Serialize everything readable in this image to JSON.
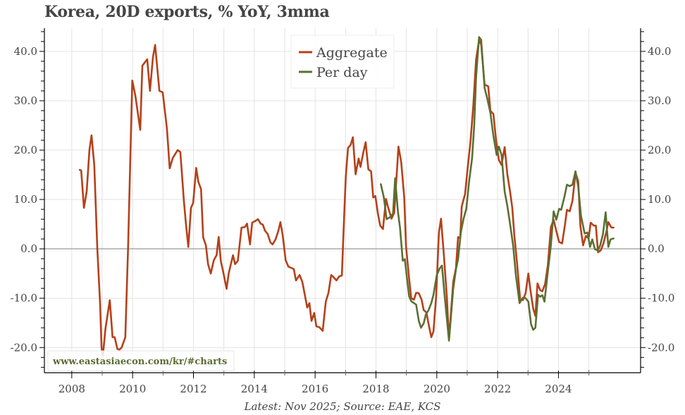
{
  "chart_data": {
    "type": "line",
    "title": "Korea, 20D exports, % YoY, 3mma",
    "caption": "Latest: Nov 2025; Source: EAE, KCS",
    "watermark": "www.eastasiaecon.com/kr/#charts",
    "xlabel": "",
    "ylabel": "",
    "xlim": [
      2007.1,
      2026.7
    ],
    "ylim": [
      -25.1,
      44.7
    ],
    "x_ticks": [
      2008,
      2010,
      2012,
      2014,
      2016,
      2018,
      2020,
      2022,
      2024
    ],
    "x_tick_labels": [
      "2008",
      "2010",
      "2012",
      "2014",
      "2016",
      "2018",
      "2020",
      "2022",
      "2024"
    ],
    "x_minor_ticks": [
      2009,
      2011,
      2013,
      2015,
      2017,
      2019,
      2021,
      2023,
      2025
    ],
    "y_ticks": [
      -20,
      -10,
      0,
      10,
      20,
      30,
      40
    ],
    "y_tick_labels": [
      "-20.0",
      "-10.0",
      "0.0",
      "10.0",
      "20.0",
      "30.0",
      "40.0"
    ],
    "y_minor_step": 2,
    "y_axis_both_sides": true,
    "grid": true,
    "zero_line": true,
    "legend": {
      "placement": "top-center",
      "entries": [
        "Aggregate",
        "Per day"
      ]
    },
    "colors": {
      "Aggregate": "#b5401a",
      "Per day": "#5a7032",
      "grid": "#e3e3e3",
      "zero": "#aaaaaa",
      "axis": "#000000"
    },
    "series": [
      {
        "name": "Aggregate",
        "points": [
          [
            2008.26,
            16.0
          ],
          [
            2008.31,
            15.9
          ],
          [
            2008.4,
            8.3
          ],
          [
            2008.49,
            11.6
          ],
          [
            2008.58,
            20.0
          ],
          [
            2008.65,
            23.0
          ],
          [
            2008.74,
            16.9
          ],
          [
            2008.84,
            0.0
          ],
          [
            2008.93,
            -11.0
          ],
          [
            2008.98,
            -20.0
          ],
          [
            2009.02,
            -21.7
          ],
          [
            2009.11,
            -16.0
          ],
          [
            2009.25,
            -10.4
          ],
          [
            2009.34,
            -17.9
          ],
          [
            2009.41,
            -17.9
          ],
          [
            2009.5,
            -20.3
          ],
          [
            2009.57,
            -20.4
          ],
          [
            2009.64,
            -20.0
          ],
          [
            2009.76,
            -17.9
          ],
          [
            2009.85,
            0.0
          ],
          [
            2009.99,
            34.1
          ],
          [
            2010.09,
            31.0
          ],
          [
            2010.25,
            24.1
          ],
          [
            2010.32,
            37.1
          ],
          [
            2010.48,
            38.4
          ],
          [
            2010.57,
            32.0
          ],
          [
            2010.67,
            38.9
          ],
          [
            2010.74,
            41.3
          ],
          [
            2010.88,
            32.0
          ],
          [
            2010.99,
            31.7
          ],
          [
            2011.13,
            24.3
          ],
          [
            2011.22,
            16.3
          ],
          [
            2011.32,
            18.4
          ],
          [
            2011.39,
            19.1
          ],
          [
            2011.48,
            20.0
          ],
          [
            2011.57,
            19.6
          ],
          [
            2011.69,
            9.4
          ],
          [
            2011.76,
            4.7
          ],
          [
            2011.83,
            0.4
          ],
          [
            2011.92,
            8.3
          ],
          [
            2011.99,
            9.3
          ],
          [
            2012.09,
            16.4
          ],
          [
            2012.16,
            13.6
          ],
          [
            2012.25,
            12.1
          ],
          [
            2012.32,
            2.3
          ],
          [
            2012.41,
            0.7
          ],
          [
            2012.48,
            -3.1
          ],
          [
            2012.57,
            -5.0
          ],
          [
            2012.67,
            -2.3
          ],
          [
            2012.76,
            -1.3
          ],
          [
            2012.83,
            2.4
          ],
          [
            2012.9,
            -2.4
          ],
          [
            2012.99,
            -5.0
          ],
          [
            2013.09,
            -8.1
          ],
          [
            2013.16,
            -4.9
          ],
          [
            2013.3,
            -1.3
          ],
          [
            2013.37,
            -3.1
          ],
          [
            2013.46,
            -2.4
          ],
          [
            2013.58,
            4.3
          ],
          [
            2013.69,
            4.4
          ],
          [
            2013.76,
            5.1
          ],
          [
            2013.86,
            0.9
          ],
          [
            2013.93,
            5.3
          ],
          [
            2014.05,
            5.7
          ],
          [
            2014.12,
            6.0
          ],
          [
            2014.21,
            5.1
          ],
          [
            2014.28,
            4.9
          ],
          [
            2014.35,
            3.7
          ],
          [
            2014.44,
            3.0
          ],
          [
            2014.53,
            1.3
          ],
          [
            2014.6,
            0.9
          ],
          [
            2014.7,
            1.9
          ],
          [
            2014.79,
            3.6
          ],
          [
            2014.86,
            5.4
          ],
          [
            2014.93,
            2.9
          ],
          [
            2015.03,
            -2.3
          ],
          [
            2015.12,
            -3.6
          ],
          [
            2015.23,
            -3.9
          ],
          [
            2015.3,
            -4.1
          ],
          [
            2015.37,
            -6.4
          ],
          [
            2015.49,
            -5.3
          ],
          [
            2015.58,
            -6.7
          ],
          [
            2015.67,
            -9.6
          ],
          [
            2015.74,
            -11.9
          ],
          [
            2015.81,
            -11.0
          ],
          [
            2015.88,
            -14.6
          ],
          [
            2015.97,
            -13.0
          ],
          [
            2016.04,
            -15.7
          ],
          [
            2016.14,
            -15.9
          ],
          [
            2016.25,
            -16.6
          ],
          [
            2016.35,
            -10.7
          ],
          [
            2016.44,
            -8.9
          ],
          [
            2016.53,
            -5.3
          ],
          [
            2016.6,
            -5.7
          ],
          [
            2016.7,
            -6.4
          ],
          [
            2016.79,
            -5.6
          ],
          [
            2016.88,
            -5.4
          ],
          [
            2016.95,
            6.1
          ],
          [
            2017.01,
            14.7
          ],
          [
            2017.08,
            20.4
          ],
          [
            2017.17,
            21.1
          ],
          [
            2017.24,
            22.6
          ],
          [
            2017.33,
            15.1
          ],
          [
            2017.43,
            18.3
          ],
          [
            2017.49,
            16.6
          ],
          [
            2017.59,
            19.7
          ],
          [
            2017.66,
            21.6
          ],
          [
            2017.75,
            16.1
          ],
          [
            2017.84,
            15.7
          ],
          [
            2017.91,
            10.4
          ],
          [
            2017.98,
            10.7
          ],
          [
            2018.07,
            6.9
          ],
          [
            2018.14,
            4.7
          ],
          [
            2018.23,
            4.0
          ],
          [
            2018.33,
            10.1
          ],
          [
            2018.39,
            8.6
          ],
          [
            2018.51,
            6.1
          ],
          [
            2018.6,
            7.3
          ],
          [
            2018.65,
            11.9
          ],
          [
            2018.74,
            20.7
          ],
          [
            2018.83,
            17.6
          ],
          [
            2018.93,
            10.4
          ],
          [
            2018.99,
            0.4
          ],
          [
            2019.09,
            -6.0
          ],
          [
            2019.16,
            -10.0
          ],
          [
            2019.25,
            -10.3
          ],
          [
            2019.32,
            -8.9
          ],
          [
            2019.41,
            -9.0
          ],
          [
            2019.5,
            -10.3
          ],
          [
            2019.57,
            -12.4
          ],
          [
            2019.66,
            -12.9
          ],
          [
            2019.73,
            -15.3
          ],
          [
            2019.82,
            -17.9
          ],
          [
            2019.89,
            -16.7
          ],
          [
            2019.98,
            -9.6
          ],
          [
            2020.07,
            3.3
          ],
          [
            2020.14,
            6.1
          ],
          [
            2020.23,
            -1.0
          ],
          [
            2020.33,
            -9.6
          ],
          [
            2020.4,
            -18.4
          ],
          [
            2020.54,
            -6.7
          ],
          [
            2020.63,
            -3.9
          ],
          [
            2020.7,
            2.4
          ],
          [
            2020.77,
            2.1
          ],
          [
            2020.82,
            8.6
          ],
          [
            2020.93,
            11.1
          ],
          [
            2021.02,
            16.6
          ],
          [
            2021.11,
            21.9
          ],
          [
            2021.2,
            29.0
          ],
          [
            2021.29,
            38.3
          ],
          [
            2021.39,
            42.3
          ],
          [
            2021.46,
            41.4
          ],
          [
            2021.57,
            33.3
          ],
          [
            2021.69,
            32.9
          ],
          [
            2021.76,
            28.0
          ],
          [
            2021.86,
            27.3
          ],
          [
            2021.95,
            21.9
          ],
          [
            2022.04,
            18.0
          ],
          [
            2022.13,
            17.0
          ],
          [
            2022.23,
            20.6
          ],
          [
            2022.32,
            15.1
          ],
          [
            2022.41,
            11.6
          ],
          [
            2022.48,
            8.3
          ],
          [
            2022.55,
            2.6
          ],
          [
            2022.64,
            -3.1
          ],
          [
            2022.74,
            -10.3
          ],
          [
            2022.83,
            -10.4
          ],
          [
            2022.92,
            -9.0
          ],
          [
            2023.01,
            -5.0
          ],
          [
            2023.08,
            -8.4
          ],
          [
            2023.17,
            -12.1
          ],
          [
            2023.24,
            -13.6
          ],
          [
            2023.31,
            -7.0
          ],
          [
            2023.4,
            -8.4
          ],
          [
            2023.47,
            -8.6
          ],
          [
            2023.56,
            -7.1
          ],
          [
            2023.65,
            -3.3
          ],
          [
            2023.75,
            4.4
          ],
          [
            2023.84,
            5.9
          ],
          [
            2023.93,
            3.6
          ],
          [
            2024.02,
            1.4
          ],
          [
            2024.12,
            1.1
          ],
          [
            2024.21,
            4.7
          ],
          [
            2024.28,
            7.9
          ],
          [
            2024.37,
            7.6
          ],
          [
            2024.46,
            9.7
          ],
          [
            2024.56,
            15.4
          ],
          [
            2024.65,
            13.7
          ],
          [
            2024.72,
            4.7
          ],
          [
            2024.81,
            0.7
          ],
          [
            2024.9,
            2.6
          ],
          [
            2024.99,
            2.1
          ],
          [
            2025.06,
            5.3
          ],
          [
            2025.16,
            4.7
          ],
          [
            2025.23,
            4.7
          ],
          [
            2025.3,
            -0.7
          ],
          [
            2025.39,
            -0.3
          ],
          [
            2025.48,
            1.1
          ],
          [
            2025.57,
            3.3
          ],
          [
            2025.64,
            5.4
          ],
          [
            2025.74,
            4.3
          ],
          [
            2025.81,
            4.3
          ]
        ]
      },
      {
        "name": "Per day",
        "points": [
          [
            2018.16,
            13.1
          ],
          [
            2018.26,
            10.4
          ],
          [
            2018.35,
            6.0
          ],
          [
            2018.46,
            6.4
          ],
          [
            2018.56,
            7.1
          ],
          [
            2018.63,
            14.3
          ],
          [
            2018.72,
            7.6
          ],
          [
            2018.79,
            4.3
          ],
          [
            2018.88,
            -2.4
          ],
          [
            2018.95,
            -2.1
          ],
          [
            2019.02,
            -6.0
          ],
          [
            2019.09,
            -9.6
          ],
          [
            2019.16,
            -10.6
          ],
          [
            2019.25,
            -11.0
          ],
          [
            2019.32,
            -11.3
          ],
          [
            2019.41,
            -14.6
          ],
          [
            2019.48,
            -16.0
          ],
          [
            2019.57,
            -15.1
          ],
          [
            2019.64,
            -13.3
          ],
          [
            2019.73,
            -12.4
          ],
          [
            2019.82,
            -11.0
          ],
          [
            2019.89,
            -9.3
          ],
          [
            2020.0,
            -5.3
          ],
          [
            2020.1,
            -3.9
          ],
          [
            2020.17,
            -3.4
          ],
          [
            2020.26,
            -9.6
          ],
          [
            2020.4,
            -18.6
          ],
          [
            2020.54,
            -8.1
          ],
          [
            2020.63,
            -4.1
          ],
          [
            2020.7,
            -2.1
          ],
          [
            2020.79,
            3.3
          ],
          [
            2020.88,
            6.1
          ],
          [
            2020.97,
            8.1
          ],
          [
            2021.06,
            13.6
          ],
          [
            2021.16,
            18.4
          ],
          [
            2021.23,
            25.0
          ],
          [
            2021.29,
            34.7
          ],
          [
            2021.39,
            42.9
          ],
          [
            2021.46,
            42.3
          ],
          [
            2021.57,
            32.6
          ],
          [
            2021.66,
            30.4
          ],
          [
            2021.76,
            27.6
          ],
          [
            2021.86,
            22.9
          ],
          [
            2021.97,
            19.0
          ],
          [
            2022.04,
            20.7
          ],
          [
            2022.13,
            19.0
          ],
          [
            2022.23,
            11.6
          ],
          [
            2022.32,
            8.7
          ],
          [
            2022.41,
            5.0
          ],
          [
            2022.51,
            0.7
          ],
          [
            2022.6,
            -5.3
          ],
          [
            2022.72,
            -11.0
          ],
          [
            2022.83,
            -9.9
          ],
          [
            2022.92,
            -10.0
          ],
          [
            2023.01,
            -10.7
          ],
          [
            2023.1,
            -15.3
          ],
          [
            2023.17,
            -16.4
          ],
          [
            2023.24,
            -16.0
          ],
          [
            2023.33,
            -9.3
          ],
          [
            2023.4,
            -9.7
          ],
          [
            2023.47,
            -9.4
          ],
          [
            2023.54,
            -10.7
          ],
          [
            2023.65,
            -4.6
          ],
          [
            2023.75,
            0.7
          ],
          [
            2023.84,
            7.6
          ],
          [
            2023.93,
            5.9
          ],
          [
            2024.02,
            8.1
          ],
          [
            2024.09,
            7.9
          ],
          [
            2024.19,
            10.4
          ],
          [
            2024.28,
            13.0
          ],
          [
            2024.37,
            12.7
          ],
          [
            2024.46,
            13.0
          ],
          [
            2024.56,
            15.7
          ],
          [
            2024.65,
            12.6
          ],
          [
            2024.74,
            6.7
          ],
          [
            2024.86,
            3.1
          ],
          [
            2024.95,
            3.3
          ],
          [
            2025.04,
            0.4
          ],
          [
            2025.11,
            1.9
          ],
          [
            2025.2,
            -0.1
          ],
          [
            2025.3,
            -0.3
          ],
          [
            2025.37,
            0.7
          ],
          [
            2025.46,
            2.9
          ],
          [
            2025.55,
            7.4
          ],
          [
            2025.64,
            0.4
          ],
          [
            2025.71,
            1.9
          ],
          [
            2025.81,
            2.1
          ]
        ]
      }
    ]
  }
}
